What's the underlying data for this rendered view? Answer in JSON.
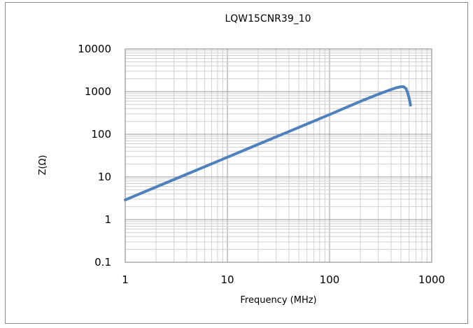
{
  "chart_data": {
    "type": "line",
    "title": "LQW15CNR39_10",
    "xlabel": "Frequency (MHz)",
    "ylabel": "Z(Ω)",
    "x_scale": "log",
    "y_scale": "log",
    "xlim": [
      1,
      1000
    ],
    "ylim": [
      0.1,
      10000
    ],
    "x_ticks": [
      "1",
      "10",
      "100",
      "1000"
    ],
    "y_ticks": [
      "0.1",
      "1",
      "10",
      "100",
      "1000",
      "10000"
    ],
    "grid": true,
    "legend": "none",
    "series": [
      {
        "color": "#4f81bd",
        "x": [
          1,
          2,
          5,
          10,
          20,
          50,
          100,
          200,
          300,
          400,
          450,
          500,
          530,
          560,
          580,
          600,
          620
        ],
        "y": [
          2.9,
          5.8,
          14.5,
          29,
          58,
          145,
          290,
          590,
          870,
          1120,
          1230,
          1300,
          1300,
          1180,
          950,
          720,
          480
        ]
      }
    ]
  }
}
